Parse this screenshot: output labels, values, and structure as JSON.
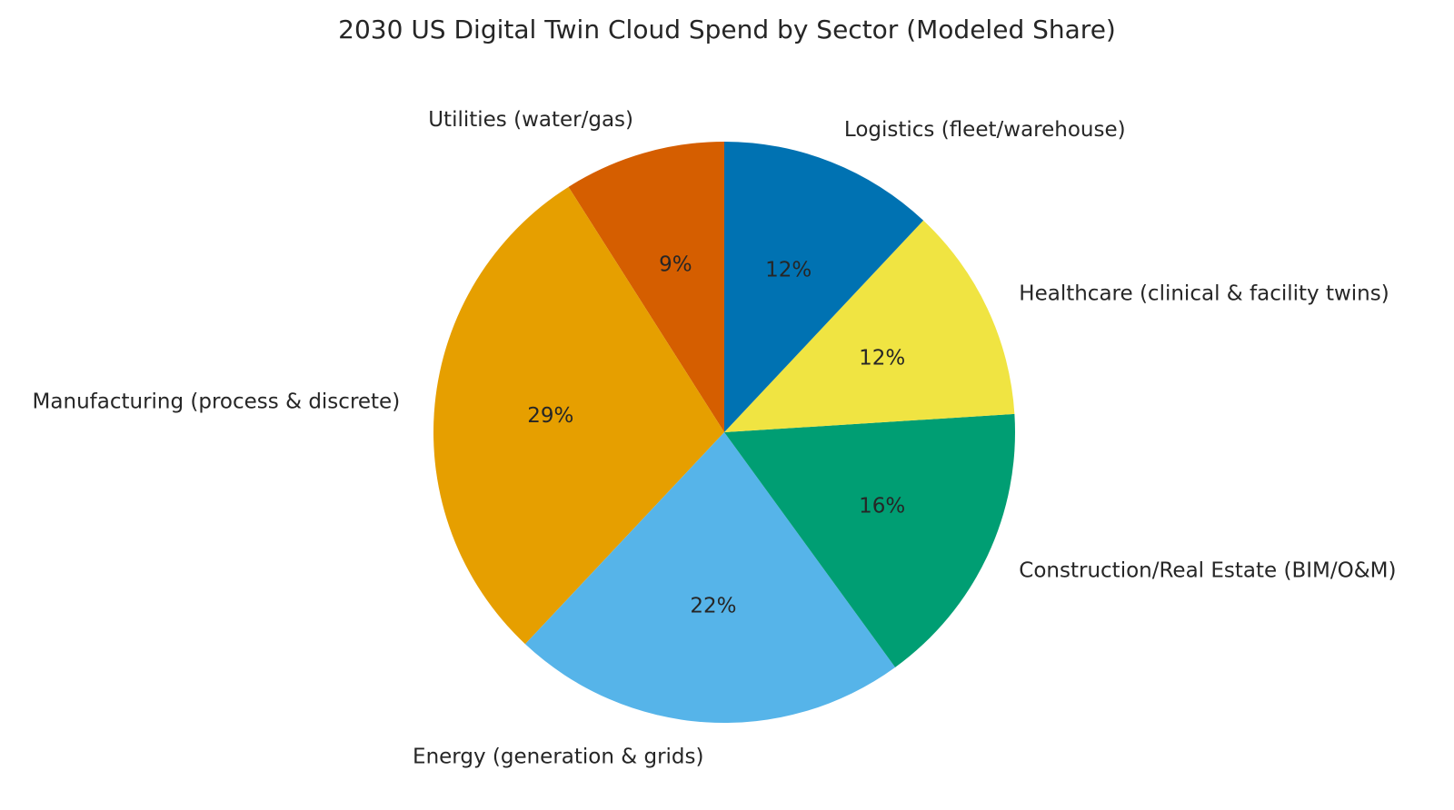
{
  "chart_data": {
    "type": "pie",
    "title": "2030 US Digital Twin Cloud Spend by Sector (Modeled Share)",
    "start_angle_deg": 90,
    "direction": "counterclockwise",
    "slices": [
      {
        "label": "Utilities (water/gas)",
        "value": 9,
        "pct_label": "9%",
        "color": "#d55e00"
      },
      {
        "label": "Manufacturing (process & discrete)",
        "value": 29,
        "pct_label": "29%",
        "color": "#e69f00"
      },
      {
        "label": "Energy (generation & grids)",
        "value": 22,
        "pct_label": "22%",
        "color": "#56b4e9"
      },
      {
        "label": "Construction/Real Estate (BIM/O&M)",
        "value": 16,
        "pct_label": "16%",
        "color": "#009e73"
      },
      {
        "label": "Healthcare (clinical & facility twins)",
        "value": 12,
        "pct_label": "12%",
        "color": "#f0e442"
      },
      {
        "label": "Logistics (fleet/warehouse)",
        "value": 12,
        "pct_label": "12%",
        "color": "#0072b2"
      }
    ]
  }
}
